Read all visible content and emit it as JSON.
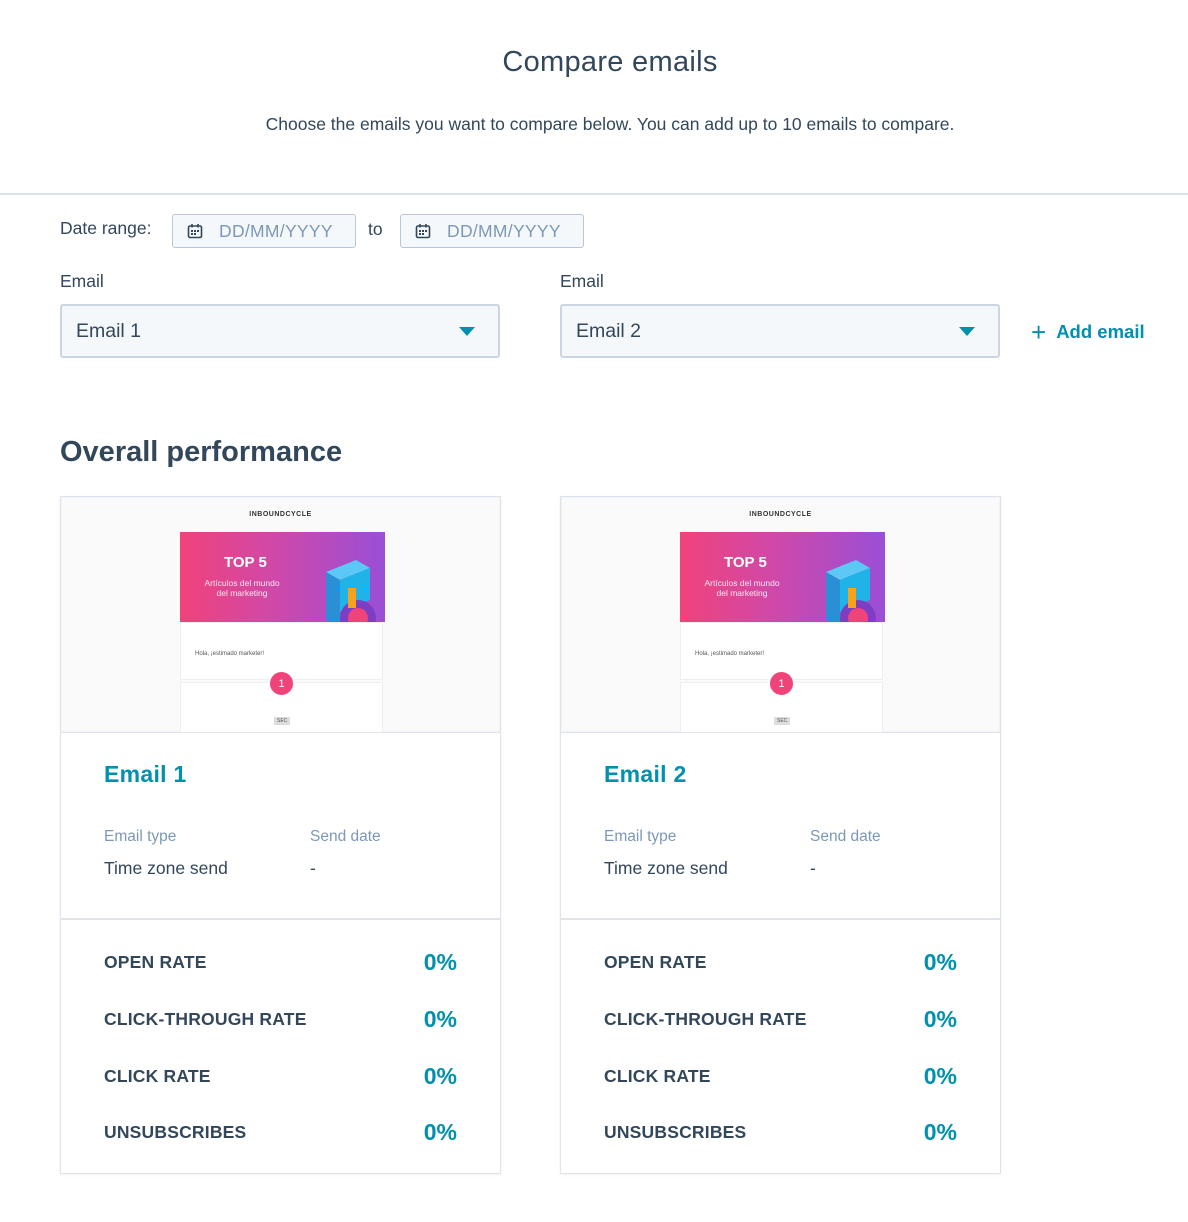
{
  "header": {
    "title": "Compare emails",
    "subtitle": "Choose the emails you want to compare below. You can add up to 10 emails to compare."
  },
  "date_range": {
    "label": "Date range:",
    "from_placeholder": "DD/MM/YYYY",
    "separator": "to",
    "to_placeholder": "DD/MM/YYYY"
  },
  "selectors": [
    {
      "label": "Email",
      "value": "Email 1"
    },
    {
      "label": "Email",
      "value": "Email 2"
    }
  ],
  "add_email_label": "Add email",
  "section_title": "Overall performance",
  "cards": [
    {
      "preview": {
        "logo": "INBOUNDCYCLE",
        "banner_title": "TOP 5",
        "banner_subtitle": "Artículos del mundo del marketing",
        "greeting": "Hola, ¡estimado marketer!",
        "badge": "1",
        "tag": "SEC"
      },
      "name": "Email 1",
      "email_type_label": "Email type",
      "email_type": "Time zone send",
      "send_date_label": "Send date",
      "send_date": "-",
      "metrics": [
        {
          "label": "OPEN RATE",
          "value": "0%"
        },
        {
          "label": "CLICK-THROUGH RATE",
          "value": "0%"
        },
        {
          "label": "CLICK RATE",
          "value": "0%"
        },
        {
          "label": "UNSUBSCRIBES",
          "value": "0%"
        }
      ]
    },
    {
      "preview": {
        "logo": "INBOUNDCYCLE",
        "banner_title": "TOP 5",
        "banner_subtitle": "Artículos del mundo del marketing",
        "greeting": "Hola, ¡estimado marketer!",
        "badge": "1",
        "tag": "SEC"
      },
      "name": "Email 2",
      "email_type_label": "Email type",
      "email_type": "Time zone send",
      "send_date_label": "Send date",
      "send_date": "-",
      "metrics": [
        {
          "label": "OPEN RATE",
          "value": "0%"
        },
        {
          "label": "CLICK-THROUGH RATE",
          "value": "0%"
        },
        {
          "label": "CLICK RATE",
          "value": "0%"
        },
        {
          "label": "UNSUBSCRIBES",
          "value": "0%"
        }
      ]
    }
  ],
  "colors": {
    "accent": "#0091ae",
    "text": "#33475b",
    "muted": "#7c98b6",
    "border": "#cbd6e2"
  },
  "icons": {
    "date": "calendar-icon",
    "select": "caret-down-icon",
    "add": "plus-icon"
  }
}
